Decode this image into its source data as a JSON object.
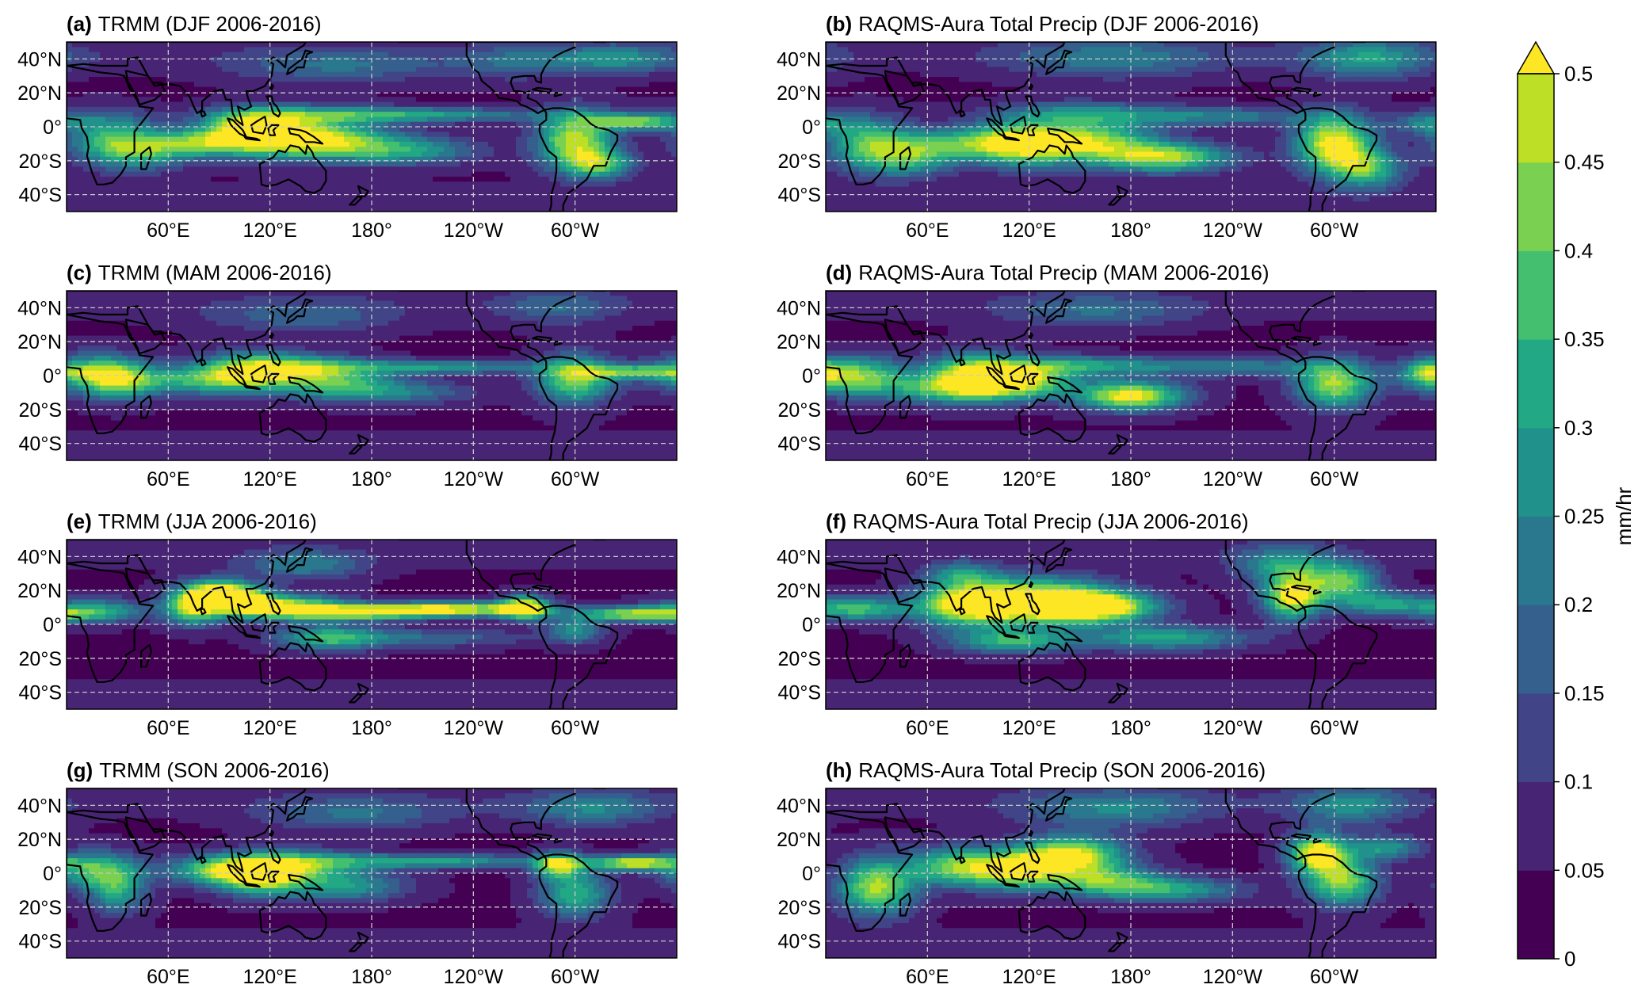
{
  "figure": {
    "panels": [
      {
        "tag": "(a)",
        "title": "TRMM (DJF 2006-2016)",
        "source": "obs",
        "season": "DJF"
      },
      {
        "tag": "(b)",
        "title": "RAQMS-Aura Total Precip (DJF 2006-2016)",
        "source": "model",
        "season": "DJF"
      },
      {
        "tag": "(c)",
        "title": "TRMM (MAM 2006-2016)",
        "source": "obs",
        "season": "MAM"
      },
      {
        "tag": "(d)",
        "title": "RAQMS-Aura Total Precip (MAM 2006-2016)",
        "source": "model",
        "season": "MAM"
      },
      {
        "tag": "(e)",
        "title": "TRMM (JJA 2006-2016)",
        "source": "obs",
        "season": "JJA"
      },
      {
        "tag": "(f)",
        "title": "RAQMS-Aura Total Precip (JJA 2006-2016)",
        "source": "model",
        "season": "JJA"
      },
      {
        "tag": "(g)",
        "title": "TRMM (SON 2006-2016)",
        "source": "obs",
        "season": "SON"
      },
      {
        "tag": "(h)",
        "title": "RAQMS-Aura Total Precip (SON 2006-2016)",
        "source": "model",
        "season": "SON"
      }
    ],
    "lat_ticks": [
      "40°N",
      "20°N",
      "0°",
      "20°S",
      "40°S"
    ],
    "lat_values": [
      40,
      20,
      0,
      -20,
      -40
    ],
    "lon_ticks": [
      "60°E",
      "120°E",
      "180°",
      "120°W",
      "60°W"
    ],
    "lon_values": [
      60,
      120,
      180,
      240,
      300
    ],
    "extent": {
      "lon": [
        0,
        360
      ],
      "lat": [
        -50,
        50
      ]
    },
    "gridlines": true,
    "colorbar": {
      "label": "mm/hr",
      "ticks": [
        "0",
        "0.05",
        "0.1",
        "0.15",
        "0.2",
        "0.25",
        "0.3",
        "0.35",
        "0.4",
        "0.45",
        "0.5"
      ],
      "levels": [
        0,
        0.05,
        0.1,
        0.15,
        0.2,
        0.25,
        0.3,
        0.35,
        0.4,
        0.45,
        0.5
      ],
      "extend": "max",
      "colormap": "viridis",
      "colors": [
        "#440154",
        "#482475",
        "#414487",
        "#355f8d",
        "#2a788e",
        "#21918c",
        "#22a884",
        "#44bf70",
        "#7ad151",
        "#bddf26",
        "#fde725"
      ]
    }
  }
}
